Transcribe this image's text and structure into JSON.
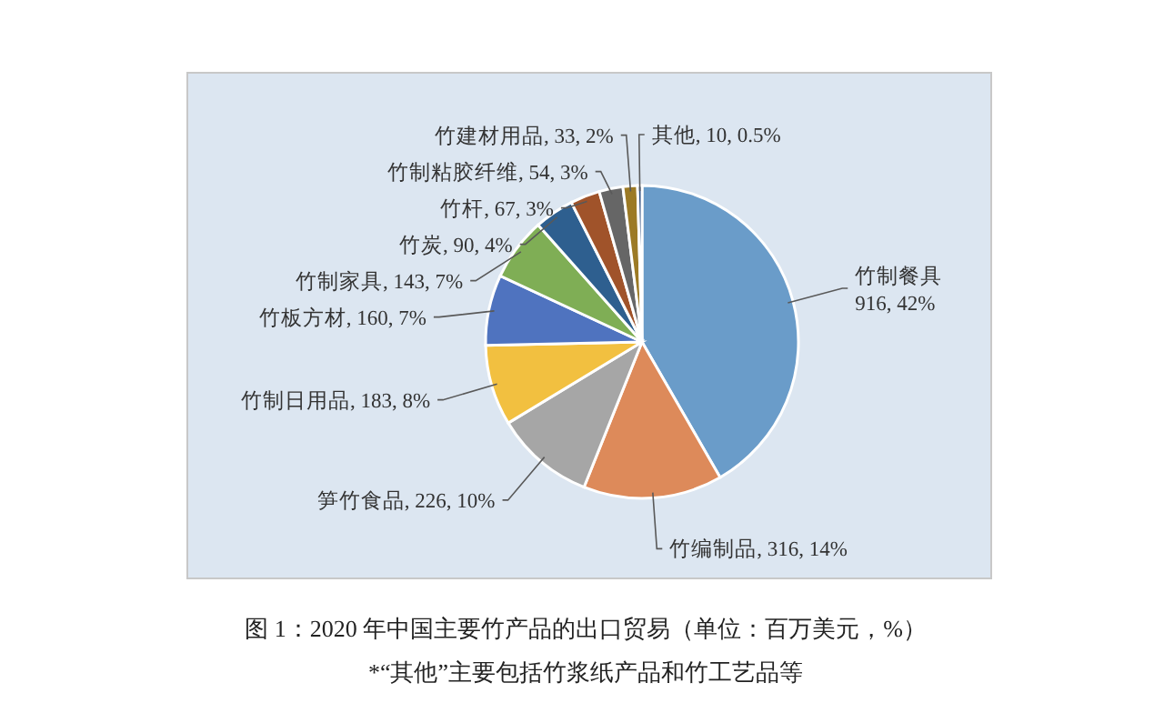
{
  "chart_data": {
    "type": "pie",
    "categories": [
      "竹制餐具",
      "竹编制品",
      "笋竹食品",
      "竹制日用品",
      "竹板方材",
      "竹制家具",
      "竹炭",
      "竹杆",
      "竹制粘胶纤维",
      "竹建材用品",
      "其他"
    ],
    "values": [
      916,
      316,
      226,
      183,
      160,
      143,
      90,
      67,
      54,
      33,
      10
    ],
    "value_labels": [
      "916, 42%",
      "316, 14%",
      "226, 10%",
      "183, 8%",
      "160, 7%",
      "143, 7%",
      "90, 4%",
      "67, 3%",
      "54, 3%",
      "33, 2%",
      "10, 0.5%"
    ],
    "colors": [
      "#6a9cc9",
      "#dd8a5a",
      "#a6a6a6",
      "#f2c040",
      "#4f73bf",
      "#7fae55",
      "#2e5f8f",
      "#a0532a",
      "#666666",
      "#9c7a25",
      "#2f4f80"
    ],
    "title": "图 1：2020 年中国主要竹产品的出口贸易（单位：百万美元，%）",
    "annotations": [
      "*“其他”主要包括竹浆纸产品和竹工艺品等"
    ],
    "legend": false
  }
}
